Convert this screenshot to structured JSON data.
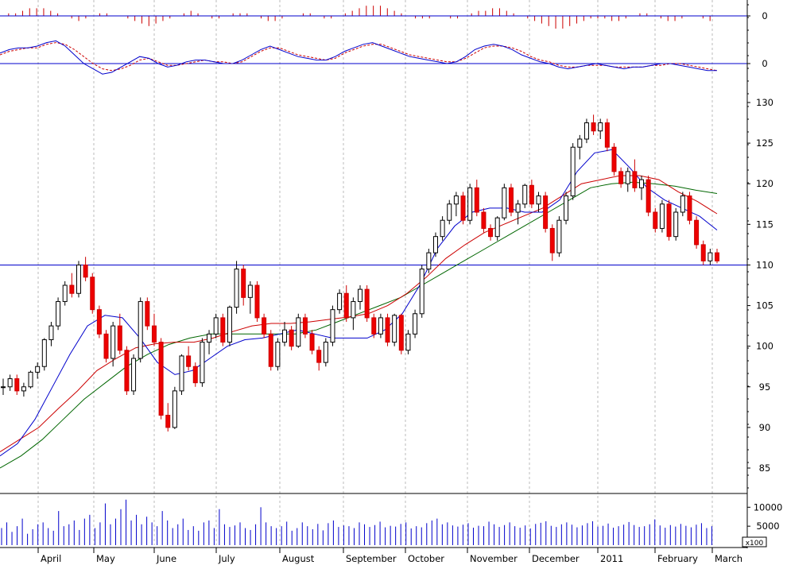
{
  "chart_data": {
    "type": "candlestick",
    "x_months": [
      "April",
      "May",
      "June",
      "July",
      "August",
      "September",
      "October",
      "November",
      "December",
      "2011",
      "February",
      "March"
    ],
    "panels": {
      "histogram": {
        "tick_labels": [
          "0"
        ],
        "values": [
          0,
          1,
          1,
          2,
          3,
          3,
          3,
          2,
          1,
          0,
          -1,
          -2,
          -1,
          0,
          1,
          1,
          0,
          0,
          -1,
          -2,
          -3,
          -4,
          -3,
          -2,
          -1,
          0,
          1,
          2,
          1,
          0,
          -1,
          -1,
          0,
          1,
          1,
          1,
          0,
          -1,
          -2,
          -2,
          -1,
          0,
          0,
          1,
          1,
          0,
          -1,
          -1,
          0,
          1,
          2,
          3,
          4,
          4,
          4,
          3,
          2,
          1,
          0,
          -1,
          -1,
          -1,
          0,
          0,
          -1,
          -1,
          0,
          1,
          2,
          2,
          3,
          3,
          2,
          1,
          0,
          -1,
          -2,
          -3,
          -4,
          -5,
          -5,
          -4,
          -3,
          -2,
          -1,
          -1,
          -1,
          -2,
          -2,
          -1,
          0,
          1,
          1,
          0,
          -1,
          -2,
          -2,
          -1,
          0,
          0,
          -1,
          -2
        ]
      },
      "macd": {
        "tick_labels": [
          "0"
        ],
        "macd": [
          0.6,
          0.8,
          0.9,
          0.9,
          1.0,
          1.2,
          1.3,
          1.0,
          0.5,
          0.0,
          -0.3,
          -0.6,
          -0.5,
          -0.2,
          0.1,
          0.4,
          0.3,
          0.0,
          -0.2,
          -0.1,
          0.1,
          0.2,
          0.2,
          0.1,
          0.0,
          0.0,
          0.2,
          0.5,
          0.8,
          1.0,
          0.8,
          0.6,
          0.4,
          0.3,
          0.2,
          0.2,
          0.4,
          0.7,
          0.9,
          1.1,
          1.2,
          1.0,
          0.8,
          0.6,
          0.4,
          0.3,
          0.2,
          0.1,
          0.0,
          0.1,
          0.4,
          0.8,
          1.0,
          1.1,
          1.0,
          0.8,
          0.5,
          0.3,
          0.1,
          0.0,
          -0.2,
          -0.3,
          -0.2,
          -0.1,
          0.0,
          -0.1,
          -0.2,
          -0.3,
          -0.2,
          -0.2,
          -0.1,
          0.0,
          0.0,
          -0.1,
          -0.2,
          -0.3,
          -0.4,
          -0.4
        ],
        "signal": [
          0.5,
          0.7,
          0.8,
          0.9,
          0.9,
          1.1,
          1.2,
          1.1,
          0.8,
          0.4,
          0.0,
          -0.3,
          -0.4,
          -0.3,
          -0.1,
          0.2,
          0.3,
          0.1,
          -0.1,
          -0.1,
          0.0,
          0.1,
          0.2,
          0.1,
          0.1,
          0.0,
          0.1,
          0.4,
          0.7,
          0.9,
          0.9,
          0.7,
          0.5,
          0.4,
          0.3,
          0.2,
          0.3,
          0.6,
          0.8,
          1.0,
          1.1,
          1.1,
          0.9,
          0.7,
          0.5,
          0.4,
          0.3,
          0.2,
          0.1,
          0.1,
          0.3,
          0.6,
          0.9,
          1.0,
          1.0,
          0.9,
          0.7,
          0.4,
          0.2,
          0.1,
          -0.1,
          -0.2,
          -0.2,
          -0.1,
          -0.1,
          -0.1,
          -0.2,
          -0.2,
          -0.2,
          -0.2,
          -0.1,
          -0.1,
          0.0,
          0.0,
          -0.1,
          -0.2,
          -0.3,
          -0.4
        ],
        "colors": {
          "macd": "#0000cc",
          "signal": "#cc0000"
        }
      },
      "price": {
        "tick_labels": [
          "130",
          "125",
          "120",
          "115",
          "110",
          "105",
          "100",
          "95",
          "90",
          "85"
        ],
        "ylim": [
          82,
          132
        ],
        "horizontal_line": 110,
        "candles": [
          [
            95,
            96,
            94,
            95
          ],
          [
            95,
            96.5,
            94.5,
            96
          ],
          [
            96,
            96.5,
            94,
            94.5
          ],
          [
            94.5,
            95.5,
            93.8,
            95
          ],
          [
            95,
            97,
            94.8,
            96.8
          ],
          [
            96.8,
            98,
            96,
            97.5
          ],
          [
            97.5,
            101,
            97,
            100.8
          ],
          [
            100.8,
            103,
            100,
            102.5
          ],
          [
            102.5,
            106,
            102,
            105.5
          ],
          [
            105.5,
            108,
            105,
            107.5
          ],
          [
            107.5,
            109,
            106,
            106.5
          ],
          [
            106.5,
            110.5,
            106,
            110
          ],
          [
            110,
            111,
            108,
            108.5
          ],
          [
            108.5,
            109,
            104,
            104.5
          ],
          [
            104.5,
            105,
            101,
            101.5
          ],
          [
            101.5,
            102,
            98,
            98.5
          ],
          [
            98.5,
            103,
            97.5,
            102.5
          ],
          [
            102.5,
            104,
            99,
            99.5
          ],
          [
            99.5,
            100,
            94,
            94.5
          ],
          [
            94.5,
            99,
            94,
            98.5
          ],
          [
            98.5,
            106,
            98,
            105.5
          ],
          [
            105.5,
            106,
            102,
            102.5
          ],
          [
            102.5,
            104,
            100,
            100.5
          ],
          [
            100.5,
            101,
            91,
            91.5
          ],
          [
            91.5,
            93,
            89.5,
            90
          ],
          [
            90,
            95,
            89.8,
            94.5
          ],
          [
            94.5,
            99,
            94,
            98.8
          ],
          [
            98.8,
            100,
            97,
            97.5
          ],
          [
            97.5,
            98,
            95,
            95.5
          ],
          [
            95.5,
            101,
            95,
            100.5
          ],
          [
            100.5,
            102,
            99,
            101.5
          ],
          [
            101.5,
            104,
            101,
            103.5
          ],
          [
            103.5,
            104,
            100,
            100.5
          ],
          [
            100.5,
            105,
            100,
            104.8
          ],
          [
            104.8,
            110.5,
            104,
            109.5
          ],
          [
            109.5,
            110,
            105,
            106
          ],
          [
            106,
            108,
            104,
            107.5
          ],
          [
            107.5,
            108,
            103,
            103.5
          ],
          [
            103.5,
            104,
            101,
            101.5
          ],
          [
            101.5,
            102,
            97,
            97.5
          ],
          [
            97.5,
            101,
            97,
            100.5
          ],
          [
            100.5,
            103,
            100,
            102
          ],
          [
            102,
            102.5,
            99.5,
            100
          ],
          [
            100,
            104,
            99.8,
            103.5
          ],
          [
            103.5,
            104,
            101,
            101.5
          ],
          [
            101.5,
            102,
            99,
            99.5
          ],
          [
            99.5,
            100,
            97,
            98
          ],
          [
            98,
            101,
            97.5,
            100.5
          ],
          [
            100.5,
            105,
            100,
            104.5
          ],
          [
            104.5,
            107,
            104,
            106.5
          ],
          [
            106.5,
            107.5,
            103,
            103.5
          ],
          [
            103.5,
            106,
            102,
            105.5
          ],
          [
            105.5,
            107.5,
            104.5,
            107
          ],
          [
            107,
            107.5,
            103,
            103.5
          ],
          [
            103.5,
            104,
            101,
            101.5
          ],
          [
            101.5,
            104,
            101,
            103.5
          ],
          [
            103.5,
            104,
            100,
            100.5
          ],
          [
            100.5,
            104,
            100,
            103.8
          ],
          [
            103.8,
            104,
            99,
            99.5
          ],
          [
            99.5,
            102,
            99,
            101.5
          ],
          [
            101.5,
            104.5,
            101,
            104
          ],
          [
            104,
            110,
            103.5,
            109.5
          ],
          [
            109.5,
            112,
            109,
            111.5
          ],
          [
            111.5,
            114,
            111,
            113.5
          ],
          [
            113.5,
            116,
            113,
            115.5
          ],
          [
            115.5,
            118,
            115,
            117.5
          ],
          [
            117.5,
            119,
            116,
            118.5
          ],
          [
            118.5,
            119,
            115,
            115.5
          ],
          [
            115.5,
            120,
            115,
            119.5
          ],
          [
            119.5,
            120.5,
            116,
            116.5
          ],
          [
            116.5,
            117,
            114,
            114.5
          ],
          [
            114.5,
            115,
            113,
            113.5
          ],
          [
            113.5,
            116,
            113,
            115.8
          ],
          [
            115.8,
            120,
            115.5,
            119.5
          ],
          [
            119.5,
            120,
            116,
            116.5
          ],
          [
            116.5,
            118,
            115,
            117.5
          ],
          [
            117.5,
            120,
            117,
            119.8
          ],
          [
            119.8,
            120.5,
            117,
            117.5
          ],
          [
            117.5,
            119,
            116.5,
            118.5
          ],
          [
            118.5,
            119,
            114,
            114.5
          ],
          [
            114.5,
            115,
            110.5,
            111.5
          ],
          [
            111.5,
            116,
            111,
            115.5
          ],
          [
            115.5,
            119,
            115,
            118.5
          ],
          [
            118.5,
            125,
            118,
            124.5
          ],
          [
            124.5,
            126,
            123,
            125.5
          ],
          [
            125.5,
            128,
            125,
            127.5
          ],
          [
            127.5,
            128.5,
            126,
            126.5
          ],
          [
            126.5,
            128,
            125.5,
            127.5
          ],
          [
            127.5,
            128,
            124,
            124.5
          ],
          [
            124.5,
            125,
            121,
            121.5
          ],
          [
            121.5,
            122,
            119.5,
            120
          ],
          [
            120,
            122,
            119,
            121.5
          ],
          [
            121.5,
            123,
            119,
            119.5
          ],
          [
            119.5,
            121,
            118,
            120.5
          ],
          [
            120.5,
            121,
            116,
            116.5
          ],
          [
            116.5,
            117,
            114,
            114.5
          ],
          [
            114.5,
            118,
            114,
            117.5
          ],
          [
            117.5,
            118,
            113,
            113.5
          ],
          [
            113.5,
            117,
            113,
            116.5
          ],
          [
            116.5,
            119,
            116,
            118.5
          ],
          [
            118.5,
            119,
            115,
            115.5
          ],
          [
            115.5,
            116,
            112,
            112.5
          ],
          [
            112.5,
            113,
            110,
            110.5
          ],
          [
            110.5,
            112,
            110,
            111.5
          ],
          [
            111.5,
            112,
            110.2,
            110.5
          ]
        ],
        "ma_short": {
          "color": "#0000cc",
          "values": [
            86.5,
            88,
            91,
            95,
            99,
            102.5,
            103.8,
            103.5,
            101,
            98,
            96.5,
            97,
            98.5,
            100,
            100.8,
            101,
            101.5,
            102,
            101.5,
            101,
            101,
            101,
            102,
            104,
            107.5,
            112,
            114.8,
            116.5,
            117,
            117,
            116.5,
            116.5,
            118,
            121.5,
            123.8,
            124.2,
            122,
            119.5,
            118,
            117,
            116,
            114.3
          ]
        },
        "ma_mid": {
          "color": "#cc0000",
          "values": [
            87,
            88.5,
            90,
            92.3,
            94.5,
            97,
            98.5,
            99.8,
            100.3,
            100.5,
            100.5,
            101,
            101.8,
            102.5,
            102.8,
            102.8,
            103,
            103.3,
            103.6,
            104,
            105,
            106.5,
            108.5,
            110.8,
            112.5,
            114,
            115,
            116,
            117,
            118.5,
            120,
            120.5,
            121,
            121,
            120.5,
            119,
            117.8,
            116.3
          ]
        },
        "ma_long": {
          "color": "#006600",
          "values": [
            85,
            86.5,
            88.5,
            91,
            93.5,
            95.5,
            97.5,
            99,
            100.2,
            101,
            101.5,
            101.5,
            101.5,
            101.5,
            101.5,
            102,
            103,
            104,
            105,
            106,
            107.5,
            109,
            110.5,
            112,
            113.5,
            115,
            116.5,
            118,
            119.5,
            120,
            120.2,
            120,
            119.7,
            119.2,
            118.8
          ]
        }
      },
      "volume": {
        "tick_labels": [
          "10000",
          "5000"
        ],
        "unit_label": "x100",
        "values": [
          4500,
          6000,
          3500,
          5000,
          7000,
          3000,
          4200,
          5500,
          6000,
          4500,
          3800,
          9000,
          5000,
          5500,
          6500,
          4000,
          7000,
          8000,
          4500,
          6000,
          11000,
          5500,
          7000,
          9500,
          12000,
          6500,
          8000,
          5500,
          7500,
          6000,
          5000,
          9000,
          6500,
          4500,
          5500,
          7000,
          4000,
          5000,
          3800,
          6000,
          6500,
          4500,
          9500,
          5500,
          4800,
          5200,
          6000,
          4500,
          4000,
          5500,
          10000,
          6000,
          5000,
          4500,
          5000,
          6200,
          3800,
          4500,
          6000,
          5000,
          4200,
          5600,
          3900,
          5800,
          6500,
          4800,
          5200,
          5000,
          4500,
          6000,
          5500,
          4800,
          5300,
          6200,
          4700,
          5100,
          4900,
          5600,
          6000,
          4400,
          5000,
          4700,
          5800,
          6500,
          7000,
          5500,
          6000,
          5200,
          4900,
          5400,
          5800,
          4600,
          5100,
          5000,
          6200,
          5500,
          4800,
          5300,
          6000,
          5000,
          4600,
          5200,
          4400,
          5600,
          5900,
          6300,
          5100,
          4800,
          5500,
          6000,
          5400,
          4700,
          5200,
          5800,
          6300,
          4900,
          5100,
          5700,
          4600,
          5000,
          5400,
          6100,
          5300,
          4800,
          5000,
          5500,
          6800,
          5200,
          4600,
          5300,
          4900,
          5600,
          5100,
          4700,
          5400,
          5800,
          4500,
          5000
        ]
      }
    }
  }
}
